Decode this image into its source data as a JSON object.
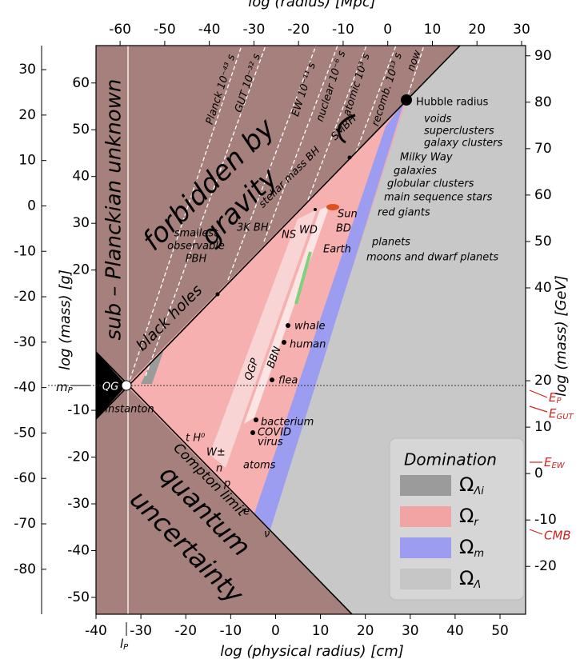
{
  "chart_data": {
    "type": "diagram",
    "xlabel": "log (physical radius) [cm]",
    "xlim": [
      -40,
      55.7
    ],
    "xticks": [
      -40,
      -30,
      -20,
      -10,
      0,
      10,
      20,
      30,
      40,
      50
    ],
    "x2label": "log (radius) [Mpc]",
    "x2lim": [
      -65.4,
      30.9
    ],
    "x2ticks": [
      -60,
      -50,
      -40,
      -30,
      -20,
      -10,
      0,
      10,
      20,
      30
    ],
    "ylabel": "log (mass) [g]",
    "ylim": [
      -53.6,
      68
    ],
    "yticks": [
      60,
      50,
      40,
      30,
      20,
      -10,
      -20,
      -30,
      -40,
      -50
    ],
    "y3lim": [
      -89.9,
      35.3
    ],
    "y3ticks": [
      30,
      20,
      10,
      0,
      -10,
      -20,
      -30,
      -40,
      -50,
      -60,
      -70,
      -80
    ],
    "y2label": "log (mass) [GeV]",
    "y2lim": [
      -30.3,
      92.2
    ],
    "y2ticks": [
      90,
      80,
      70,
      60,
      50,
      40,
      20,
      10,
      0,
      -10,
      -20
    ],
    "legend": {
      "title": "Domination",
      "entries": [
        {
          "symbol": "Ω",
          "sub": "Λi",
          "color": "#9b9b9b"
        },
        {
          "symbol": "Ω",
          "sub": "r",
          "color": "#f2a4a4"
        },
        {
          "symbol": "Ω",
          "sub": "m",
          "color": "#9c9cf0"
        },
        {
          "symbol": "Ω",
          "sub": "Λ",
          "color": "#c6c6c6"
        }
      ]
    },
    "labels": {
      "sub_planck": "sub – Planckian unknown",
      "forbidden": [
        "forbidden by",
        "gravity"
      ],
      "quantum": [
        "quantum",
        "uncertainty"
      ],
      "black_holes": "black holes",
      "compton": "Compton limit",
      "qg": "QG",
      "instanton": "instanton",
      "pbh": [
        "smallest",
        "observable",
        "PBH"
      ],
      "qgp": "QGP",
      "bbn": "BBN",
      "bh3k": "3K BH",
      "ns": "NS",
      "wd": "WD",
      "sun": "Sun",
      "bd": "BD",
      "stellar_bh": "stellar mass BH",
      "smbh": "SMBH",
      "hubble": "Hubble radius",
      "now": "now",
      "planck": "Planck 10⁻⁴³ s",
      "gut": "GUT 10⁻³² s",
      "ew": "EW 10⁻¹¹ s",
      "nuclear": "nuclear 10⁻⁶ s",
      "atomic": "atomic 10³ s",
      "recomb": "recomb. 10¹³ s",
      "voids": "voids",
      "superclusters": "superclusters",
      "galaxy_clusters": "galaxy clusters",
      "milky_way": "Milky Way",
      "galaxies": "galaxies",
      "globular": "globular clusters",
      "main_seq": "main sequence stars",
      "red_giants": "red giants",
      "planets": "planets",
      "earth": "Earth",
      "moons": "moons and dwarf planets",
      "whale": "whale",
      "human": "human",
      "flea": "flea",
      "covid": [
        "bacterium",
        "COVID",
        "virus"
      ],
      "atoms": "atoms",
      "th0": "t H⁰",
      "w": "W±",
      "n": "n",
      "p": "p",
      "e": "e",
      "nu": "ν"
    },
    "markers": {
      "e_p": {
        "base": "E",
        "sub": "P"
      },
      "e_gut": {
        "base": "E",
        "sub": "GUT"
      },
      "e_ew": {
        "base": "E",
        "sub": "EW"
      },
      "cmb": "CMB",
      "m_p": {
        "base": "m",
        "sub": "P"
      },
      "l_p": {
        "base": "l",
        "sub": "P"
      }
    }
  }
}
